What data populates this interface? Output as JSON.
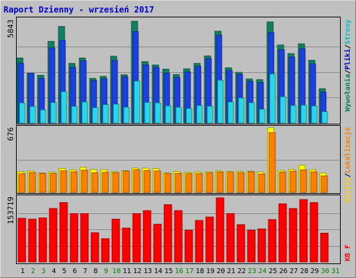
{
  "title": "Raport Dzienny -  wrzesień 2017",
  "colors": {
    "title": "#0000cc",
    "background": "#c0c0c0",
    "frame_dark": "#808080",
    "frame_light": "#ffffff",
    "grid": "#8a8a8a",
    "hits_label": "#008060",
    "files_label": "#0000cc",
    "pages_label": "#00bfbf",
    "visits_label": "#ff8000",
    "sites_label": "#ffcc00",
    "kb_label": "#ff0000",
    "weekend_day": "#008000",
    "weekday_day": "#000000"
  },
  "chart_data": [
    {
      "type": "bar",
      "panel": "top",
      "ymax_label": "5843",
      "ylim": [
        0,
        5843
      ],
      "right_label_parts": [
        {
          "text": "Wywołania",
          "color_key": "hits_label"
        },
        {
          "text": "/",
          "color_key": "weekday_day"
        },
        {
          "text": "Pliki",
          "color_key": "files_label"
        },
        {
          "text": "/",
          "color_key": "weekday_day"
        },
        {
          "text": "Strony",
          "color_key": "pages_label"
        }
      ],
      "categories": [
        "1",
        "2",
        "3",
        "4",
        "5",
        "6",
        "7",
        "8",
        "9",
        "10",
        "11",
        "12",
        "13",
        "14",
        "15",
        "16",
        "17",
        "18",
        "19",
        "20",
        "21",
        "22",
        "23",
        "24",
        "25",
        "26",
        "27",
        "28",
        "29",
        "30",
        "31"
      ],
      "weekend_days": [
        2,
        3,
        9,
        10,
        16,
        17,
        23,
        24,
        30,
        31
      ],
      "series": [
        {
          "name": "Wywołania",
          "color": "#118060",
          "values": [
            3720,
            2850,
            2730,
            4670,
            5520,
            3410,
            3720,
            2550,
            2670,
            3820,
            2760,
            5820,
            3510,
            3320,
            3080,
            2770,
            3100,
            3410,
            3840,
            5250,
            3160,
            2900,
            2520,
            2480,
            5780,
            4460,
            3970,
            4530,
            3590,
            1960,
            0
          ]
        },
        {
          "name": "Pliki",
          "color": "#1a40e0",
          "values": [
            3420,
            2850,
            2550,
            4300,
            4730,
            3180,
            3560,
            2430,
            2530,
            3580,
            2650,
            5230,
            3320,
            3180,
            2860,
            2600,
            2920,
            3240,
            3690,
            5020,
            3000,
            2790,
            2390,
            2320,
            5180,
            4200,
            3780,
            4250,
            3380,
            1770,
            0
          ]
        },
        {
          "name": "Strony",
          "color": "#28d8e8",
          "values": [
            1150,
            950,
            750,
            1170,
            1790,
            950,
            1200,
            880,
            1050,
            1080,
            900,
            2400,
            1180,
            1150,
            980,
            900,
            830,
            1000,
            960,
            2450,
            1200,
            1430,
            1160,
            790,
            2810,
            1500,
            1000,
            1020,
            970,
            650,
            0
          ]
        }
      ]
    },
    {
      "type": "bar",
      "panel": "middle",
      "ymax_label": "676",
      "ylim": [
        0,
        676
      ],
      "right_label_parts": [
        {
          "text": "Wizyty",
          "color_key": "sites_label"
        },
        {
          "text": "/",
          "color_key": "weekday_day"
        },
        {
          "text": "Lokalizacje",
          "color_key": "visits_label"
        }
      ],
      "categories": [
        "1",
        "2",
        "3",
        "4",
        "5",
        "6",
        "7",
        "8",
        "9",
        "10",
        "11",
        "12",
        "13",
        "14",
        "15",
        "16",
        "17",
        "18",
        "19",
        "20",
        "21",
        "22",
        "23",
        "24",
        "25",
        "26",
        "27",
        "28",
        "29",
        "30",
        "31"
      ],
      "series": [
        {
          "name": "Wizyty",
          "color": "#ffff00",
          "values": [
            216,
            224,
            202,
            212,
            250,
            236,
            263,
            239,
            237,
            216,
            226,
            253,
            253,
            247,
            203,
            219,
            209,
            213,
            216,
            224,
            219,
            219,
            222,
            213,
            670,
            230,
            239,
            282,
            237,
            202,
            0
          ]
        },
        {
          "name": "Lokalizacje",
          "color": "#ff8000",
          "values": [
            195,
            207,
            198,
            198,
            225,
            215,
            231,
            204,
            209,
            206,
            223,
            236,
            227,
            224,
            196,
            199,
            196,
            196,
            205,
            213,
            210,
            206,
            215,
            191,
            620,
            213,
            221,
            234,
            215,
            172,
            0
          ]
        }
      ]
    },
    {
      "type": "bar",
      "panel": "bottom",
      "ymax_label": "153719",
      "ylim": [
        0,
        153719
      ],
      "right_label_parts": [
        {
          "text": "KB F",
          "color_key": "kb_label"
        }
      ],
      "categories": [
        "1",
        "2",
        "3",
        "4",
        "5",
        "6",
        "7",
        "8",
        "9",
        "10",
        "11",
        "12",
        "13",
        "14",
        "15",
        "16",
        "17",
        "18",
        "19",
        "20",
        "21",
        "22",
        "23",
        "24",
        "25",
        "26",
        "27",
        "28",
        "29",
        "30",
        "31"
      ],
      "series": [
        {
          "name": "KB F",
          "color": "#ff0000",
          "values": [
            103000,
            101000,
            104000,
            126000,
            140000,
            114000,
            114000,
            69000,
            55000,
            101000,
            80000,
            114000,
            121000,
            89000,
            135000,
            121000,
            75000,
            98000,
            106000,
            151000,
            114000,
            88000,
            75000,
            78000,
            100000,
            137000,
            126000,
            147000,
            140000,
            68000,
            0
          ]
        }
      ]
    }
  ]
}
